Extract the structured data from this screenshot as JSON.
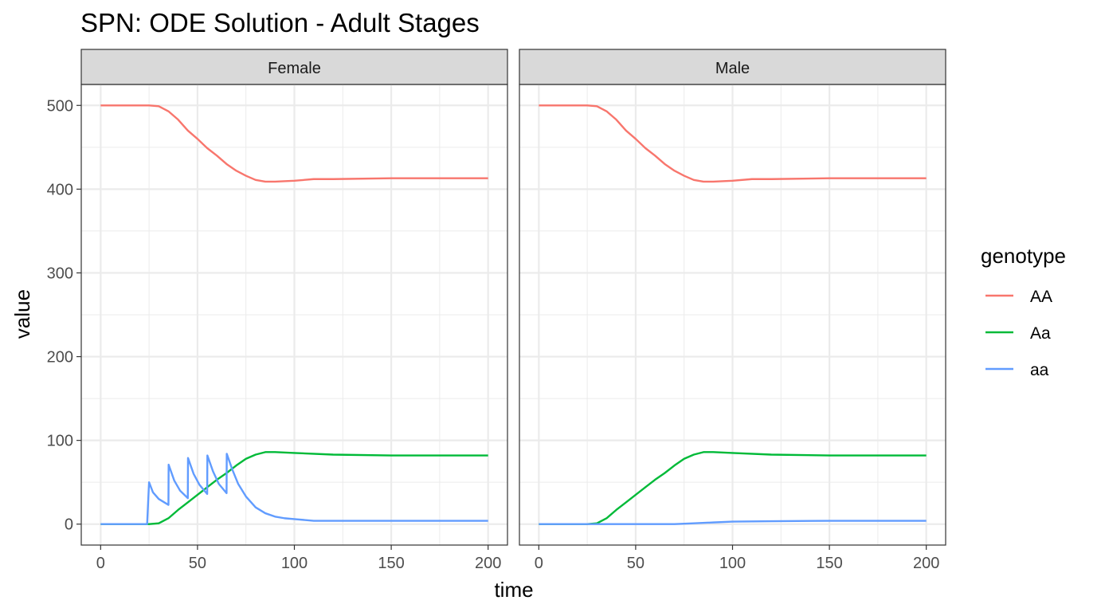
{
  "chart_data": {
    "type": "line",
    "title": "SPN: ODE Solution - Adult Stages",
    "xlabel": "time",
    "ylabel": "value",
    "xlim": [
      -10,
      210
    ],
    "ylim": [
      -25,
      525
    ],
    "x_ticks": [
      0,
      50,
      100,
      150,
      200
    ],
    "y_ticks": [
      0,
      100,
      200,
      300,
      400,
      500
    ],
    "grid": true,
    "legend": {
      "title": "genotype",
      "placement": "right",
      "entries": [
        {
          "label": "AA",
          "color": "#F8766D"
        },
        {
          "label": "Aa",
          "color": "#00BA38"
        },
        {
          "label": "aa",
          "color": "#619CFF"
        }
      ]
    },
    "panels": [
      {
        "strip": "Female",
        "series": [
          {
            "name": "AA",
            "color": "#F8766D",
            "points": [
              [
                0,
                500
              ],
              [
                10,
                500
              ],
              [
                20,
                500
              ],
              [
                25,
                500
              ],
              [
                30,
                499
              ],
              [
                35,
                493
              ],
              [
                40,
                483
              ],
              [
                45,
                470
              ],
              [
                50,
                460
              ],
              [
                55,
                449
              ],
              [
                60,
                440
              ],
              [
                65,
                430
              ],
              [
                70,
                422
              ],
              [
                75,
                416
              ],
              [
                80,
                411
              ],
              [
                85,
                409
              ],
              [
                90,
                409
              ],
              [
                100,
                410
              ],
              [
                110,
                412
              ],
              [
                120,
                412
              ],
              [
                150,
                413
              ],
              [
                200,
                413
              ]
            ]
          },
          {
            "name": "Aa",
            "color": "#00BA38",
            "points": [
              [
                0,
                0
              ],
              [
                25,
                0
              ],
              [
                30,
                1
              ],
              [
                35,
                7
              ],
              [
                40,
                17
              ],
              [
                45,
                26
              ],
              [
                50,
                35
              ],
              [
                55,
                44
              ],
              [
                60,
                53
              ],
              [
                65,
                61
              ],
              [
                70,
                70
              ],
              [
                75,
                78
              ],
              [
                80,
                83
              ],
              [
                85,
                86
              ],
              [
                90,
                86
              ],
              [
                100,
                85
              ],
              [
                120,
                83
              ],
              [
                150,
                82
              ],
              [
                200,
                82
              ]
            ]
          },
          {
            "name": "aa",
            "color": "#619CFF",
            "points": [
              [
                0,
                0
              ],
              [
                24,
                0
              ],
              [
                25,
                50
              ],
              [
                27,
                38
              ],
              [
                30,
                30
              ],
              [
                35,
                23
              ],
              [
                35.1,
                71
              ],
              [
                38,
                52
              ],
              [
                41,
                40
              ],
              [
                45,
                31
              ],
              [
                45.1,
                79
              ],
              [
                48,
                60
              ],
              [
                51,
                47
              ],
              [
                55,
                36
              ],
              [
                55.1,
                82
              ],
              [
                58,
                63
              ],
              [
                61,
                48
              ],
              [
                65,
                37
              ],
              [
                65.1,
                84
              ],
              [
                68,
                65
              ],
              [
                71,
                48
              ],
              [
                75,
                33
              ],
              [
                80,
                20
              ],
              [
                85,
                13
              ],
              [
                90,
                9
              ],
              [
                95,
                7
              ],
              [
                100,
                6
              ],
              [
                110,
                4
              ],
              [
                120,
                4
              ],
              [
                150,
                4
              ],
              [
                200,
                4
              ]
            ]
          }
        ]
      },
      {
        "strip": "Male",
        "series": [
          {
            "name": "AA",
            "color": "#F8766D",
            "points": [
              [
                0,
                500
              ],
              [
                10,
                500
              ],
              [
                20,
                500
              ],
              [
                25,
                500
              ],
              [
                30,
                499
              ],
              [
                35,
                493
              ],
              [
                40,
                483
              ],
              [
                45,
                470
              ],
              [
                50,
                460
              ],
              [
                55,
                449
              ],
              [
                60,
                440
              ],
              [
                65,
                430
              ],
              [
                70,
                422
              ],
              [
                75,
                416
              ],
              [
                80,
                411
              ],
              [
                85,
                409
              ],
              [
                90,
                409
              ],
              [
                100,
                410
              ],
              [
                110,
                412
              ],
              [
                120,
                412
              ],
              [
                150,
                413
              ],
              [
                200,
                413
              ]
            ]
          },
          {
            "name": "Aa",
            "color": "#00BA38",
            "points": [
              [
                0,
                0
              ],
              [
                25,
                0
              ],
              [
                30,
                1
              ],
              [
                35,
                7
              ],
              [
                40,
                17
              ],
              [
                45,
                26
              ],
              [
                50,
                35
              ],
              [
                55,
                44
              ],
              [
                60,
                53
              ],
              [
                65,
                61
              ],
              [
                70,
                70
              ],
              [
                75,
                78
              ],
              [
                80,
                83
              ],
              [
                85,
                86
              ],
              [
                90,
                86
              ],
              [
                100,
                85
              ],
              [
                120,
                83
              ],
              [
                150,
                82
              ],
              [
                200,
                82
              ]
            ]
          },
          {
            "name": "aa",
            "color": "#619CFF",
            "points": [
              [
                0,
                0
              ],
              [
                50,
                0
              ],
              [
                70,
                0
              ],
              [
                80,
                1
              ],
              [
                90,
                2
              ],
              [
                100,
                3
              ],
              [
                120,
                3.5
              ],
              [
                150,
                4
              ],
              [
                200,
                4
              ]
            ]
          }
        ]
      }
    ]
  }
}
